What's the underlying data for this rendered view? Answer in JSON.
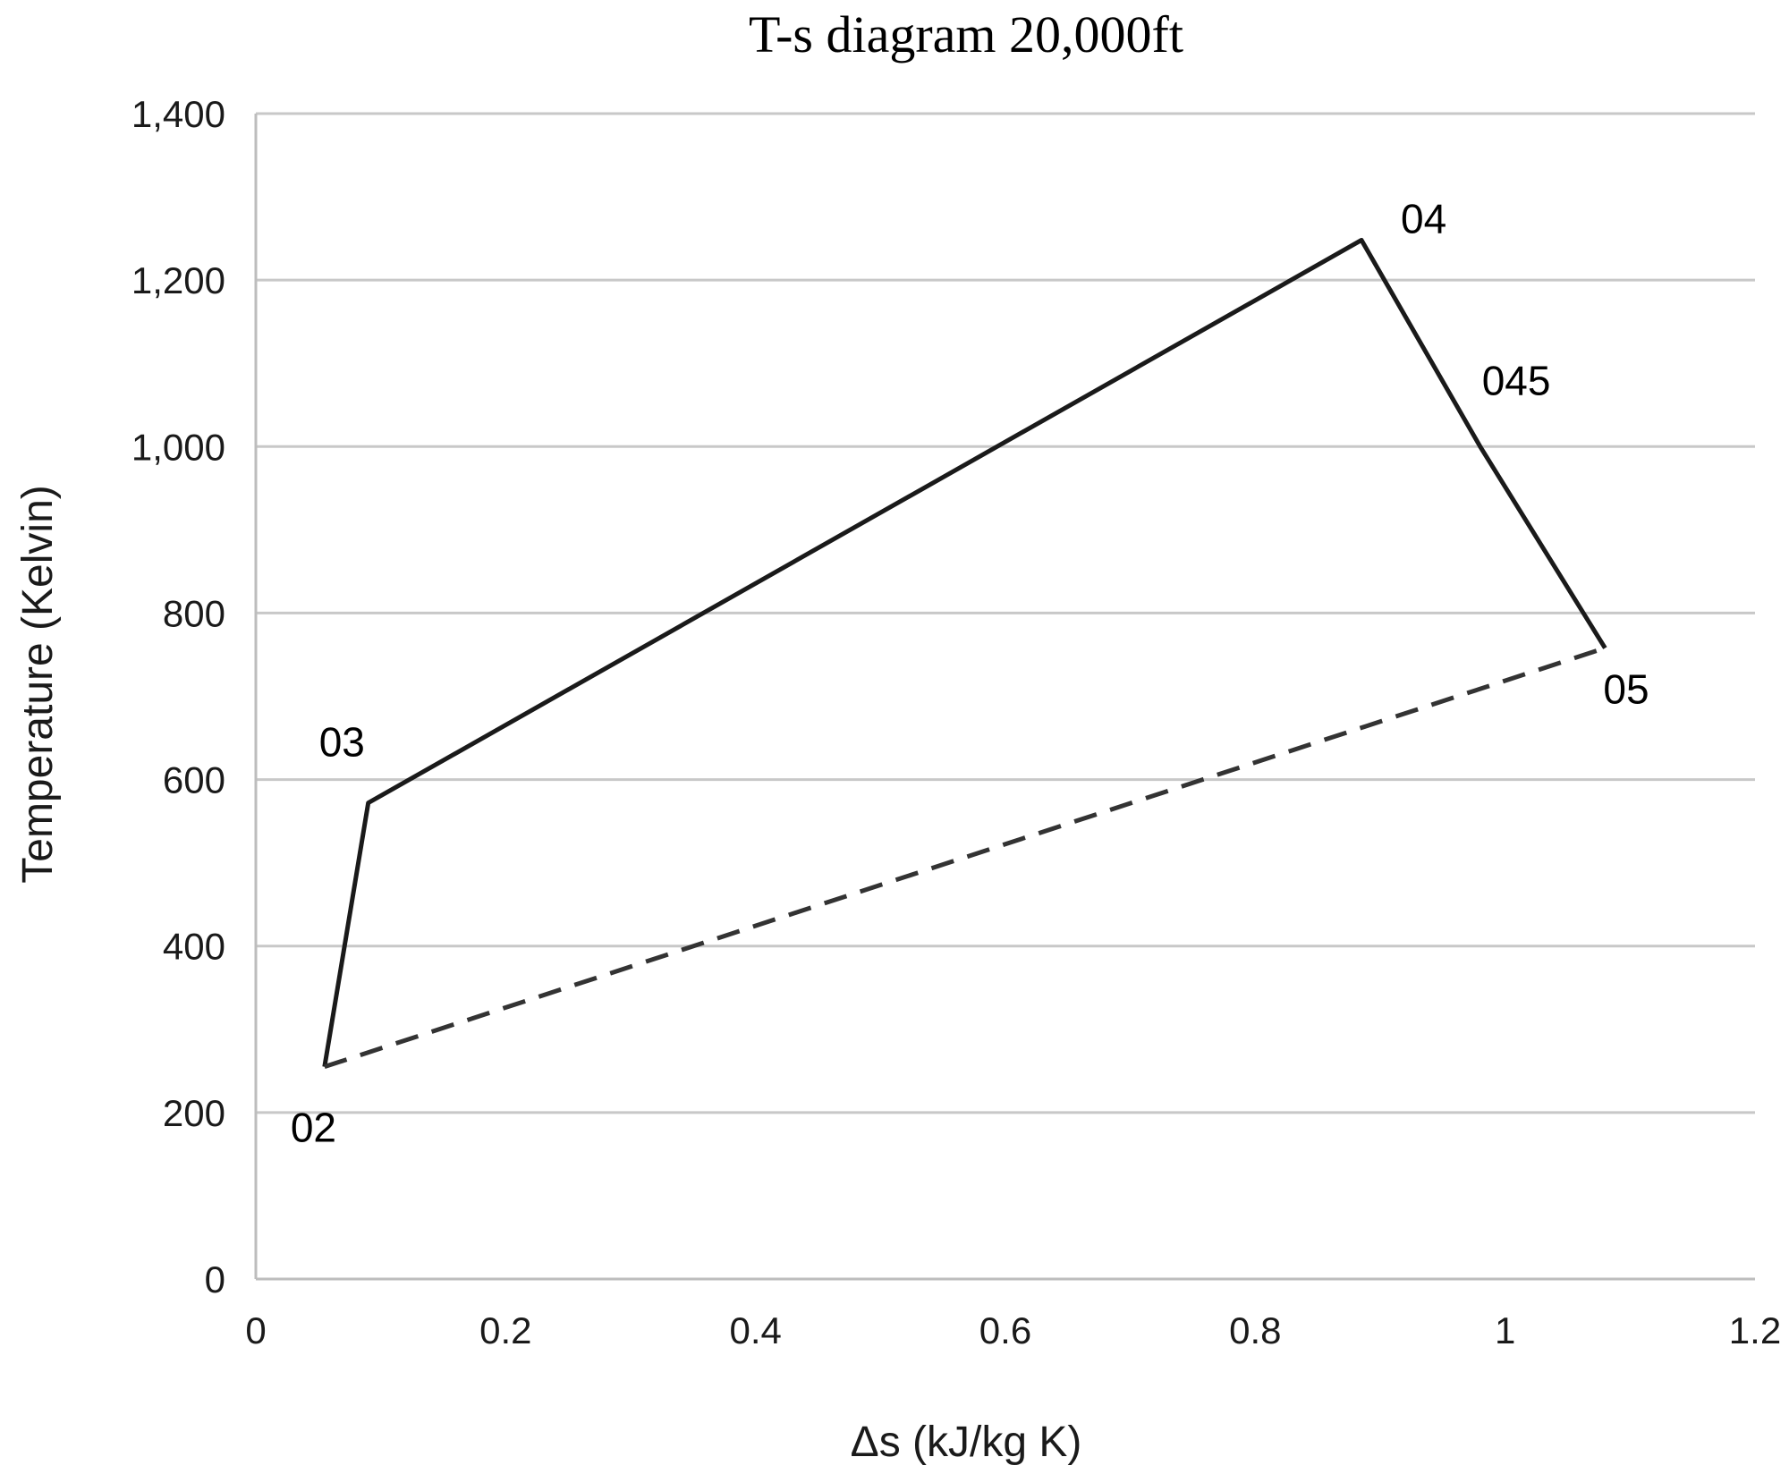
{
  "chart_data": {
    "type": "line",
    "title": "T-s diagram 20,000ft",
    "xlabel": "Δs (kJ/kg K)",
    "ylabel": "Temperature (Kelvin)",
    "xlim": [
      0,
      1.2
    ],
    "ylim": [
      0,
      1400
    ],
    "x_ticks": [
      "0",
      "0.2",
      "0.4",
      "0.6",
      "0.8",
      "1",
      "1.2"
    ],
    "y_ticks": [
      "0",
      "200",
      "400",
      "600",
      "800",
      "1,000",
      "1,200",
      "1,400"
    ],
    "grid": true,
    "points": [
      {
        "label": "02",
        "x": 0.055,
        "y": 255
      },
      {
        "label": "03",
        "x": 0.09,
        "y": 572
      },
      {
        "label": "04",
        "x": 0.885,
        "y": 1248
      },
      {
        "label": "045",
        "x": 0.98,
        "y": 1000
      },
      {
        "label": "05",
        "x": 1.08,
        "y": 758
      }
    ],
    "series": [
      {
        "style": "solid",
        "point_labels": [
          "02",
          "03",
          "04",
          "045",
          "05"
        ]
      },
      {
        "style": "dashed",
        "point_labels": [
          "02",
          "05"
        ]
      }
    ]
  }
}
